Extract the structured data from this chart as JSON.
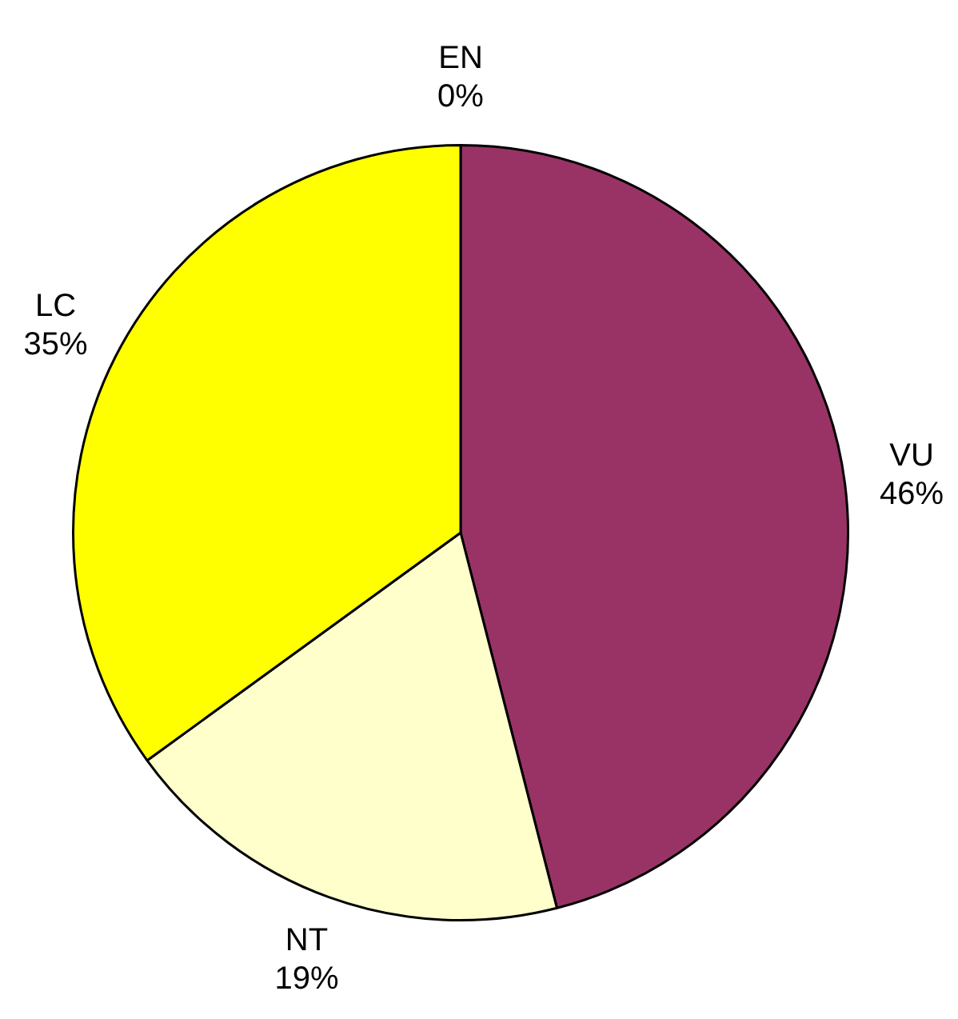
{
  "chart_data": {
    "type": "pie",
    "categories": [
      "EN",
      "VU",
      "NT",
      "LC"
    ],
    "values": [
      0,
      46,
      19,
      35
    ],
    "value_labels": [
      "0%",
      "46%",
      "19%",
      "35%"
    ],
    "colors": [
      "#3366cc",
      "#993366",
      "#ffffcc",
      "#ffff00"
    ],
    "legend": false
  }
}
